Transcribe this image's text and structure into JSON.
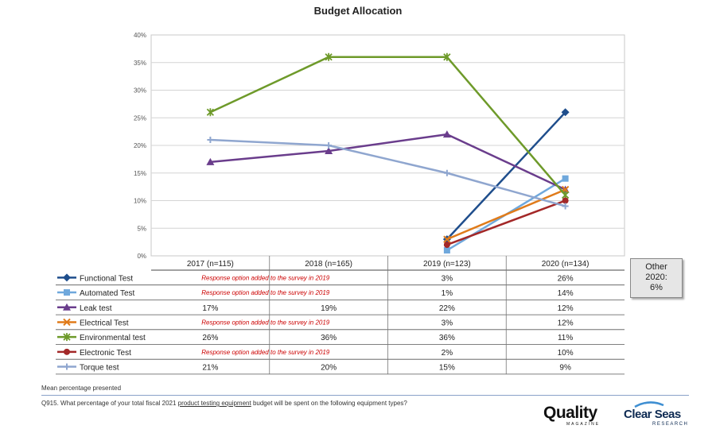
{
  "chart_data": {
    "type": "line",
    "title": "Budget Allocation",
    "categories": [
      "2017 (n=115)",
      "2018 (n=165)",
      "2019 (n=123)",
      "2020 (n=134)"
    ],
    "ylim": [
      0,
      40
    ],
    "yticks": [
      0,
      5,
      10,
      15,
      20,
      25,
      30,
      35,
      40
    ],
    "ytick_labels": [
      "0%",
      "5%",
      "10%",
      "15%",
      "20%",
      "25%",
      "30%",
      "35%",
      "40%"
    ],
    "grid": true,
    "series": [
      {
        "name": "Functional Test",
        "color": "#1f4e8c",
        "marker": "diamond",
        "values": [
          null,
          null,
          3,
          26
        ],
        "table": [
          "",
          "",
          "3%",
          "26%"
        ]
      },
      {
        "name": "Automated Test",
        "color": "#6fa8dc",
        "marker": "square",
        "values": [
          null,
          null,
          1,
          14
        ],
        "table": [
          "",
          "",
          "1%",
          "14%"
        ]
      },
      {
        "name": "Leak test",
        "color": "#6a3d8c",
        "marker": "triangle",
        "values": [
          17,
          19,
          22,
          12
        ],
        "table": [
          "17%",
          "19%",
          "22%",
          "12%"
        ]
      },
      {
        "name": "Electrical Test",
        "color": "#e07b1a",
        "marker": "x",
        "values": [
          null,
          null,
          3,
          12
        ],
        "table": [
          "",
          "",
          "3%",
          "12%"
        ]
      },
      {
        "name": "Environmental test",
        "color": "#6e9a2a",
        "marker": "star",
        "values": [
          26,
          36,
          36,
          11
        ],
        "table": [
          "26%",
          "36%",
          "36%",
          "11%"
        ]
      },
      {
        "name": "Electronic Test",
        "color": "#a32828",
        "marker": "circle",
        "values": [
          null,
          null,
          2,
          10
        ],
        "table": [
          "",
          "",
          "2%",
          "10%"
        ]
      },
      {
        "name": "Torque test",
        "color": "#8fa6cf",
        "marker": "plus",
        "values": [
          21,
          20,
          15,
          9
        ],
        "table": [
          "21%",
          "20%",
          "15%",
          "9%"
        ]
      }
    ],
    "added_note": "Response option added to the survey in 2019",
    "added_note_color": "#cc0000"
  },
  "other_box": {
    "line1": "Other",
    "line2": "2020:",
    "line3": "6%"
  },
  "notes": {
    "mean": "Mean percentage presented",
    "question_prefix": "Q915. What percentage of your total fiscal 2021 ",
    "question_underlined": "product testing equipment",
    "question_suffix": " budget will be spent on the following equipment types?"
  },
  "logos": {
    "quality": "Quality",
    "quality_sub": "MAGAZINE",
    "clearseas": "Clear Seas",
    "clearseas_sub": "RESEARCH"
  }
}
